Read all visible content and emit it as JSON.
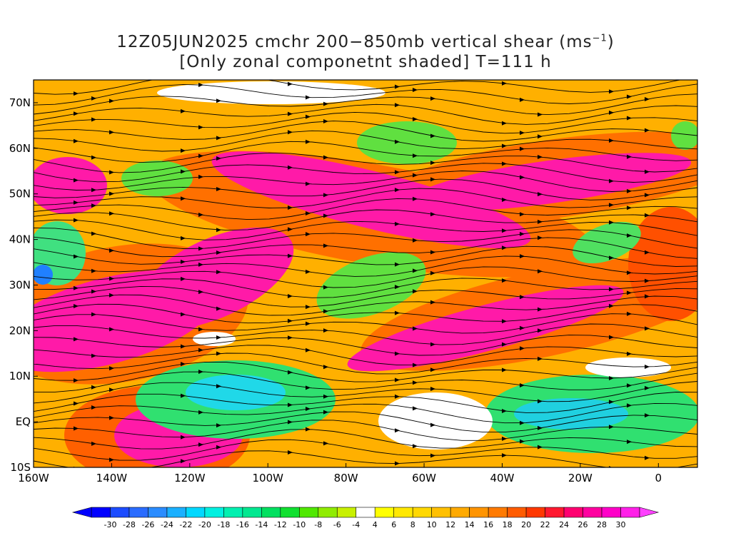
{
  "title": {
    "line1_prefix": "12Z05JUN2025 cmchr 200−850mb vertical shear (ms",
    "line1_sup": "−1",
    "line1_suffix": ")",
    "line2": "[Only zonal componetnt shaded] T=111 h"
  },
  "map": {
    "lon_range": [
      -160,
      10
    ],
    "lat_range": [
      -10,
      75
    ],
    "lon_ticks": [
      {
        "value": -160,
        "label": "160W"
      },
      {
        "value": -140,
        "label": "140W"
      },
      {
        "value": -120,
        "label": "120W"
      },
      {
        "value": -100,
        "label": "100W"
      },
      {
        "value": -80,
        "label": "80W"
      },
      {
        "value": -60,
        "label": "60W"
      },
      {
        "value": -40,
        "label": "40W"
      },
      {
        "value": -20,
        "label": "20W"
      },
      {
        "value": 0,
        "label": "0"
      }
    ],
    "lat_ticks": [
      {
        "value": -10,
        "label": "10S"
      },
      {
        "value": 0,
        "label": "EQ"
      },
      {
        "value": 10,
        "label": "10N"
      },
      {
        "value": 20,
        "label": "20N"
      },
      {
        "value": 30,
        "label": "30N"
      },
      {
        "value": 40,
        "label": "40N"
      },
      {
        "value": 50,
        "label": "50N"
      },
      {
        "value": 60,
        "label": "60N"
      },
      {
        "value": 70,
        "label": "70N"
      }
    ],
    "shading_field": "200-850mb zonal vertical shear (m/s)",
    "streamlines": "vertical shear vector streamlines",
    "contour_color": "#800080"
  },
  "colorbar": {
    "levels": [
      "-30",
      "-28",
      "-26",
      "-24",
      "-22",
      "-20",
      "-18",
      "-16",
      "-14",
      "-12",
      "-10",
      "-8",
      "-6",
      "-4",
      "4",
      "6",
      "8",
      "10",
      "12",
      "14",
      "16",
      "18",
      "20",
      "22",
      "24",
      "26",
      "28",
      "30"
    ],
    "colors": [
      "#0000ff",
      "#1c4cff",
      "#2a6cff",
      "#2a8cff",
      "#1ab0ff",
      "#00d8ff",
      "#00f0e0",
      "#00f0b0",
      "#00e890",
      "#00e060",
      "#10e030",
      "#50e800",
      "#90ec00",
      "#c8f000",
      "#ffffff",
      "#ffff00",
      "#ffe800",
      "#ffd800",
      "#ffc000",
      "#ffaa00",
      "#ff9400",
      "#ff7a00",
      "#ff5c00",
      "#ff3800",
      "#ff1830",
      "#ff0070",
      "#ff00a0",
      "#ff00c8",
      "#ff20e8"
    ]
  }
}
